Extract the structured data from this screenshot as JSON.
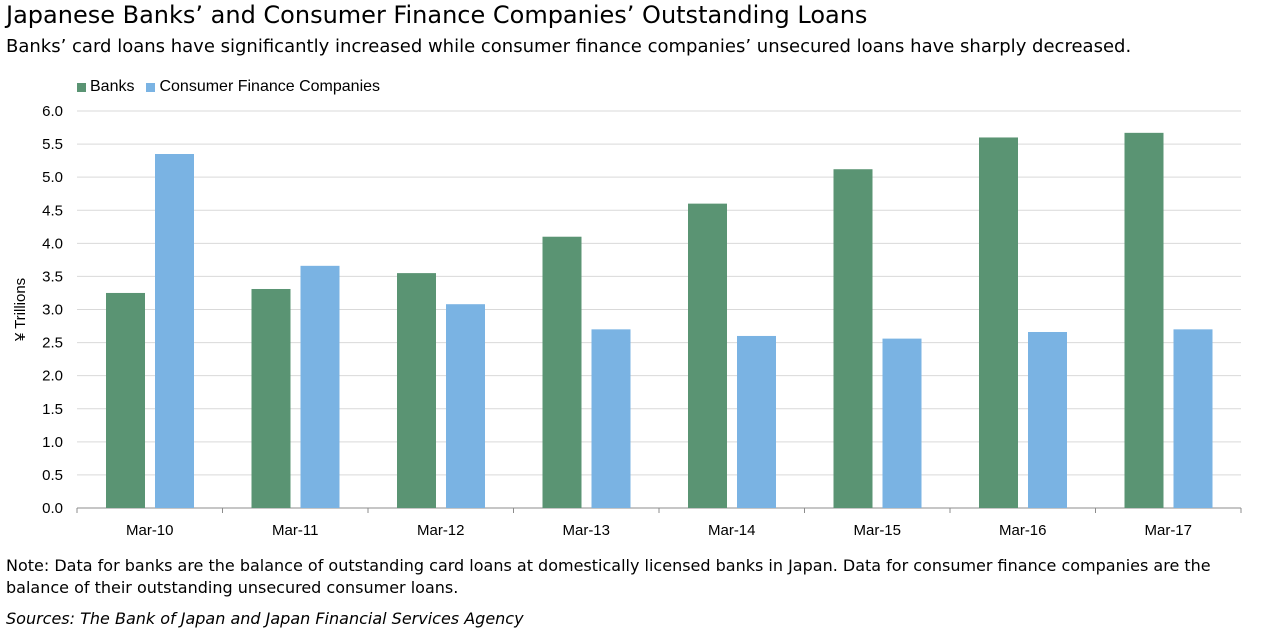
{
  "chart_data": {
    "type": "bar",
    "title": "Japanese Banks’ and Consumer Finance Companies’ Outstanding Loans",
    "subtitle": "Banks’ card loans have significantly increased while consumer finance companies’ unsecured loans have sharply decreased.",
    "categories": [
      "Mar-10",
      "Mar-11",
      "Mar-12",
      "Mar-13",
      "Mar-14",
      "Mar-15",
      "Mar-16",
      "Mar-17"
    ],
    "series": [
      {
        "name": "Banks",
        "color": "#5a9473",
        "values": [
          3.25,
          3.31,
          3.55,
          4.1,
          4.6,
          5.12,
          5.6,
          5.67
        ]
      },
      {
        "name": "Consumer Finance Companies",
        "color": "#7ab3e3",
        "values": [
          5.35,
          3.66,
          3.08,
          2.7,
          2.6,
          2.56,
          2.66,
          2.7
        ]
      }
    ],
    "ylabel": "¥ Trillions",
    "xlabel": "",
    "ylim": [
      0,
      6.0
    ],
    "yticks": [
      "0.0",
      "0.5",
      "1.0",
      "1.5",
      "2.0",
      "2.5",
      "3.0",
      "3.5",
      "4.0",
      "4.5",
      "5.0",
      "5.5",
      "6.0"
    ],
    "grid": true,
    "legend_position": "top-left"
  },
  "note": "Note: Data for banks are the balance of outstanding card loans at domestically licensed banks in Japan. Data for consumer finance companies are the balance of their outstanding unsecured consumer loans.",
  "sources": "Sources: The Bank of Japan and Japan Financial Services Agency"
}
